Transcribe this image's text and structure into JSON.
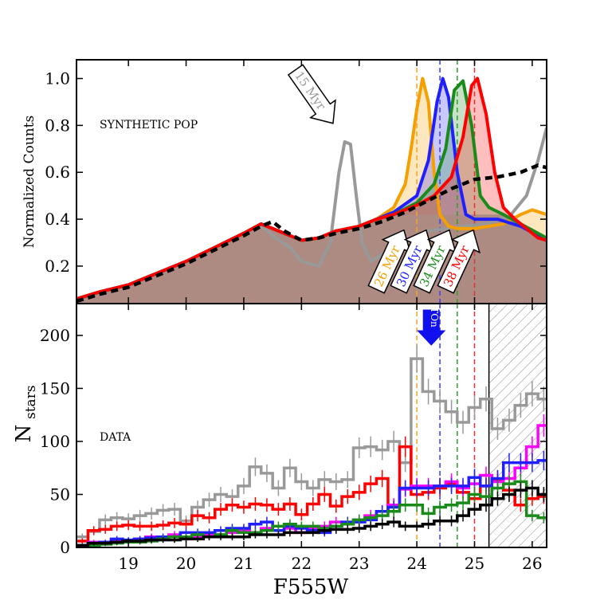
{
  "chart_data": [
    {
      "panel": "top",
      "type": "line",
      "label": "SYNTHETIC POP",
      "ylabel": "Normalized Counts",
      "xlim": [
        18.1,
        26.25
      ],
      "ylim": [
        0.04,
        1.08
      ],
      "yticks": [
        "0.2",
        "0.4",
        "0.6",
        "0.8",
        "1.0"
      ],
      "vlines": [
        {
          "x": 24.0,
          "color": "#f5a623"
        },
        {
          "x": 24.4,
          "color": "#3b3bff"
        },
        {
          "x": 24.7,
          "color": "#2aa12a"
        },
        {
          "x": 25.0,
          "color": "#e03030"
        }
      ],
      "series": [
        {
          "name": "15 Myr",
          "color": "#999999",
          "x": [
            18.1,
            18.5,
            19,
            19.5,
            20,
            20.5,
            21,
            21.3,
            21.5,
            21.8,
            22.0,
            22.3,
            22.5,
            22.65,
            22.75,
            22.85,
            22.95,
            23.05,
            23.2,
            23.4,
            23.6,
            23.8,
            24.0,
            24.2,
            24.5,
            24.8,
            25.2,
            25.6,
            25.9,
            26.1,
            26.25
          ],
          "y": [
            0.06,
            0.09,
            0.12,
            0.17,
            0.22,
            0.28,
            0.34,
            0.37,
            0.33,
            0.28,
            0.22,
            0.2,
            0.3,
            0.6,
            0.73,
            0.72,
            0.5,
            0.3,
            0.22,
            0.25,
            0.28,
            0.31,
            0.33,
            0.35,
            0.36,
            0.37,
            0.38,
            0.41,
            0.5,
            0.65,
            0.79
          ]
        },
        {
          "name": "26 Myr",
          "color": "#f5a000",
          "x": [
            18.1,
            18.5,
            19,
            19.5,
            20,
            20.5,
            21,
            21.3,
            21.6,
            22,
            22.3,
            22.6,
            23,
            23.3,
            23.6,
            23.8,
            23.9,
            24.0,
            24.1,
            24.2,
            24.3,
            24.4,
            24.55,
            24.7,
            25,
            25.5,
            25.8,
            26,
            26.25
          ],
          "y": [
            0.06,
            0.09,
            0.12,
            0.17,
            0.22,
            0.28,
            0.34,
            0.38,
            0.35,
            0.31,
            0.32,
            0.35,
            0.37,
            0.4,
            0.45,
            0.55,
            0.7,
            0.87,
            1.0,
            0.9,
            0.6,
            0.42,
            0.37,
            0.36,
            0.36,
            0.38,
            0.42,
            0.44,
            0.42
          ]
        },
        {
          "name": "30 Myr",
          "color": "#2020ff",
          "x": [
            18.1,
            18.5,
            19,
            19.5,
            20,
            20.5,
            21,
            21.3,
            21.6,
            22,
            22.3,
            22.6,
            23,
            23.3,
            23.6,
            24,
            24.2,
            24.35,
            24.45,
            24.55,
            24.7,
            24.85,
            25,
            25.4,
            25.8,
            26.1,
            26.25
          ],
          "y": [
            0.06,
            0.09,
            0.12,
            0.17,
            0.22,
            0.28,
            0.34,
            0.38,
            0.35,
            0.31,
            0.32,
            0.35,
            0.37,
            0.4,
            0.43,
            0.5,
            0.65,
            0.9,
            1.0,
            0.92,
            0.6,
            0.42,
            0.4,
            0.4,
            0.37,
            0.33,
            0.31
          ]
        },
        {
          "name": "34 Myr",
          "color": "#1a8a1a",
          "x": [
            18.1,
            18.5,
            19,
            19.5,
            20,
            20.5,
            21,
            21.3,
            21.6,
            22,
            22.3,
            22.6,
            23,
            23.3,
            23.6,
            24,
            24.3,
            24.5,
            24.65,
            24.8,
            24.95,
            25.1,
            25.25,
            25.5,
            25.8,
            26.1,
            26.25
          ],
          "y": [
            0.06,
            0.09,
            0.12,
            0.17,
            0.22,
            0.28,
            0.34,
            0.38,
            0.35,
            0.31,
            0.32,
            0.35,
            0.37,
            0.4,
            0.42,
            0.47,
            0.55,
            0.7,
            0.95,
            0.99,
            0.8,
            0.5,
            0.45,
            0.42,
            0.38,
            0.34,
            0.32
          ]
        },
        {
          "name": "38 Myr",
          "color": "#ff0000",
          "x": [
            18.1,
            18.5,
            19,
            19.5,
            20,
            20.5,
            21,
            21.3,
            21.6,
            22,
            22.3,
            22.6,
            23,
            23.3,
            23.6,
            24,
            24.3,
            24.6,
            24.8,
            24.95,
            25.05,
            25.2,
            25.35,
            25.5,
            25.7,
            25.9,
            26.1,
            26.25
          ],
          "y": [
            0.06,
            0.09,
            0.12,
            0.17,
            0.22,
            0.28,
            0.34,
            0.38,
            0.35,
            0.31,
            0.32,
            0.35,
            0.37,
            0.4,
            0.42,
            0.46,
            0.5,
            0.58,
            0.75,
            0.97,
            1.0,
            0.85,
            0.6,
            0.45,
            0.4,
            0.36,
            0.32,
            0.31
          ]
        },
        {
          "name": "observed",
          "color": "#000000",
          "dashed": true,
          "x": [
            18.1,
            18.5,
            19,
            19.5,
            20,
            20.5,
            21,
            21.3,
            21.5,
            21.7,
            22,
            22.3,
            22.6,
            23,
            23.4,
            23.8,
            24.2,
            24.6,
            25,
            25.4,
            25.8,
            26.1,
            26.25
          ],
          "y": [
            0.05,
            0.08,
            0.11,
            0.16,
            0.21,
            0.27,
            0.33,
            0.37,
            0.39,
            0.35,
            0.31,
            0.32,
            0.34,
            0.36,
            0.39,
            0.43,
            0.48,
            0.53,
            0.57,
            0.58,
            0.6,
            0.63,
            0.62
          ]
        }
      ],
      "annotations": [
        {
          "text": "15 Myr",
          "color": "#999999"
        },
        {
          "text": "26 Myr",
          "color": "#f5a000"
        },
        {
          "text": "30 Myr",
          "color": "#2020ff"
        },
        {
          "text": "34 Myr",
          "color": "#1a8a1a"
        },
        {
          "text": "38 Myr",
          "color": "#ff0000"
        }
      ]
    },
    {
      "panel": "bottom",
      "type": "step",
      "label": "DATA",
      "xlabel": "F555W",
      "ylabel": "N",
      "ylabel_sub": "stars",
      "xlim": [
        18.1,
        26.25
      ],
      "ylim": [
        0,
        230
      ],
      "xticks": [
        "19",
        "20",
        "21",
        "22",
        "23",
        "24",
        "25",
        "26"
      ],
      "yticks": [
        "0",
        "50",
        "100",
        "150",
        "200"
      ],
      "bin_start": 18.1,
      "bin_width": 0.2,
      "completeness_limit": 25.25,
      "turnoff_label": "TOn",
      "turnoff_x": 24.25,
      "series": [
        {
          "name": "gray",
          "color": "#999999",
          "values": [
            10,
            15,
            26,
            28,
            27,
            30,
            32,
            35,
            36,
            25,
            38,
            45,
            50,
            48,
            58,
            76,
            70,
            56,
            75,
            62,
            56,
            64,
            62,
            64,
            94,
            95,
            92,
            100,
            80,
            178,
            147,
            138,
            128,
            118,
            132,
            140,
            112,
            120,
            134,
            145,
            140
          ]
        },
        {
          "name": "red",
          "color": "#ff0000",
          "values": [
            6,
            16,
            17,
            20,
            21,
            20,
            20,
            21,
            23,
            22,
            30,
            28,
            36,
            40,
            38,
            41,
            40,
            36,
            41,
            31,
            41,
            50,
            39,
            48,
            52,
            60,
            65,
            40,
            95,
            50,
            52,
            56,
            60,
            52,
            46,
            58,
            64,
            54,
            40,
            46,
            48
          ]
        },
        {
          "name": "magenta",
          "color": "#ff00ff",
          "values": [
            2,
            5,
            5,
            6,
            6,
            8,
            10,
            8,
            12,
            10,
            10,
            12,
            12,
            14,
            16,
            14,
            18,
            16,
            18,
            14,
            18,
            20,
            24,
            22,
            26,
            30,
            34,
            40,
            55,
            58,
            58,
            58,
            62,
            56,
            60,
            68,
            62,
            65,
            75,
            95,
            115
          ]
        },
        {
          "name": "blue",
          "color": "#2020ff",
          "values": [
            2,
            4,
            5,
            8,
            7,
            8,
            9,
            10,
            10,
            14,
            14,
            14,
            16,
            18,
            18,
            22,
            24,
            16,
            20,
            18,
            16,
            14,
            20,
            24,
            24,
            26,
            34,
            38,
            56,
            56,
            56,
            58,
            58,
            58,
            66,
            58,
            65,
            80,
            80,
            80,
            82
          ]
        },
        {
          "name": "green",
          "color": "#1a8a1a",
          "values": [
            1,
            2,
            3,
            4,
            5,
            5,
            6,
            8,
            10,
            10,
            12,
            10,
            12,
            16,
            14,
            14,
            16,
            20,
            22,
            20,
            20,
            18,
            20,
            22,
            26,
            28,
            30,
            34,
            40,
            40,
            32,
            38,
            40,
            42,
            50,
            48,
            56,
            60,
            62,
            30,
            28
          ]
        },
        {
          "name": "black",
          "color": "#000000",
          "values": [
            2,
            4,
            4,
            5,
            6,
            6,
            7,
            7,
            7,
            8,
            8,
            10,
            10,
            10,
            10,
            12,
            12,
            12,
            14,
            14,
            14,
            16,
            17,
            17,
            18,
            20,
            22,
            24,
            20,
            20,
            22,
            25,
            25,
            30,
            36,
            40,
            46,
            50,
            54,
            56,
            50
          ]
        }
      ],
      "vlines": [
        {
          "x": 24.0,
          "color": "#f5a623"
        },
        {
          "x": 24.4,
          "color": "#3b3bff"
        },
        {
          "x": 24.7,
          "color": "#2aa12a"
        },
        {
          "x": 25.0,
          "color": "#e03030"
        }
      ]
    }
  ]
}
